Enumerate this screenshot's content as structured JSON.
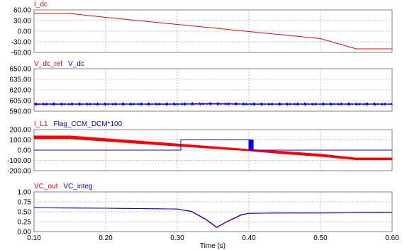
{
  "chart_data": [
    {
      "type": "line",
      "title": "",
      "legend": [
        {
          "text": "I_dc",
          "color": "#ff0000"
        }
      ],
      "xlim": [
        0.1,
        0.6
      ],
      "ylim": [
        -60,
        60
      ],
      "yticks": [
        60,
        30,
        0,
        -30,
        -60
      ],
      "ytick_labels": [
        "60.00",
        "30.00",
        "0.00",
        "-30.00",
        "-60.00"
      ],
      "series": [
        {
          "name": "I_dc",
          "color": "#ff0000",
          "style": "line",
          "x": [
            0.1,
            0.15,
            0.2,
            0.25,
            0.3,
            0.35,
            0.4,
            0.45,
            0.5,
            0.55,
            0.6
          ],
          "y": [
            50,
            50,
            39,
            29,
            19,
            9,
            -1,
            -11,
            -21,
            -50,
            -50
          ]
        }
      ]
    },
    {
      "type": "line",
      "title": "",
      "legend": [
        {
          "text": "V_dc_ref",
          "color": "#ff0000"
        },
        {
          "text": "V_dc",
          "color": "#0000ff"
        }
      ],
      "xlim": [
        0.1,
        0.6
      ],
      "ylim": [
        590,
        650
      ],
      "yticks": [
        650,
        635,
        620,
        605,
        590
      ],
      "ytick_labels": [
        "650.00",
        "635.00",
        "620.00",
        "605.00",
        "590.00"
      ],
      "series": [
        {
          "name": "V_dc_ref",
          "color": "#ff0000",
          "style": "line",
          "x": [
            0.1,
            0.6
          ],
          "y": [
            600,
            600
          ]
        },
        {
          "name": "V_dc",
          "color": "#0000ff",
          "style": "noisy",
          "x": [
            0.1,
            0.3,
            0.35,
            0.4,
            0.6
          ],
          "y": [
            600,
            600,
            600.5,
            600,
            600
          ],
          "ripple": 1.2
        }
      ]
    },
    {
      "type": "line",
      "title": "",
      "legend": [
        {
          "text": "I_L1",
          "color": "#ff0000"
        },
        {
          "text": "Flag_CCM_DCM*100",
          "color": "#0000ff"
        }
      ],
      "xlim": [
        0.1,
        0.6
      ],
      "ylim": [
        -200,
        200
      ],
      "yticks": [
        200,
        100,
        0,
        -100,
        -200
      ],
      "ytick_labels": [
        "200.00",
        "100.00",
        "0.00",
        "-100.00",
        "-200.00"
      ],
      "series": [
        {
          "name": "I_L1",
          "color": "#ff0000",
          "style": "band",
          "x": [
            0.1,
            0.15,
            0.2,
            0.25,
            0.3,
            0.35,
            0.4,
            0.45,
            0.5,
            0.55,
            0.6
          ],
          "y": [
            125,
            125,
            100,
            75,
            50,
            25,
            0,
            -25,
            -50,
            -85,
            -85
          ],
          "upper": [
            140,
            140,
            114,
            88,
            62,
            35,
            8,
            -12,
            -38,
            -75,
            -75
          ],
          "lower": [
            110,
            110,
            86,
            62,
            38,
            15,
            -8,
            -38,
            -62,
            -95,
            -95
          ]
        },
        {
          "name": "Flag_CCM_DCM*100",
          "color": "#0000ff",
          "style": "step",
          "x": [
            0.1,
            0.305,
            0.305,
            0.4,
            0.4,
            0.401,
            0.401,
            0.402,
            0.402,
            0.403,
            0.403,
            0.404,
            0.404,
            0.405,
            0.405,
            0.406,
            0.406,
            0.6
          ],
          "y": [
            0,
            0,
            100,
            100,
            0,
            0,
            100,
            100,
            0,
            0,
            100,
            100,
            0,
            0,
            100,
            100,
            0,
            0
          ]
        }
      ]
    },
    {
      "type": "line",
      "title": "",
      "legend": [
        {
          "text": "VC_out",
          "color": "#ff0000"
        },
        {
          "text": "VC_integ",
          "color": "#0000ff"
        }
      ],
      "xlim": [
        0.1,
        0.6
      ],
      "ylim": [
        0,
        1
      ],
      "yticks": [
        1,
        0.75,
        0.5,
        0.25,
        0
      ],
      "ytick_labels": [
        "1.00",
        "0.75",
        "0.50",
        "0.25",
        "0.00"
      ],
      "xticks": [
        0.1,
        0.2,
        0.3,
        0.4,
        0.5,
        0.6
      ],
      "xtick_labels": [
        "0.10",
        "0.20",
        "0.30",
        "0.40",
        "0.50",
        "0.60"
      ],
      "xlabel": "Time (s)",
      "series": [
        {
          "name": "VC_out",
          "color": "#ff0000",
          "style": "line",
          "x": [
            0.1,
            0.2,
            0.3,
            0.32,
            0.34,
            0.355,
            0.37,
            0.39,
            0.4,
            0.45,
            0.5,
            0.6
          ],
          "y": [
            0.6,
            0.59,
            0.57,
            0.5,
            0.3,
            0.1,
            0.25,
            0.42,
            0.46,
            0.47,
            0.47,
            0.48
          ]
        },
        {
          "name": "VC_integ",
          "color": "#0000ff",
          "style": "line",
          "x": [
            0.1,
            0.2,
            0.3,
            0.32,
            0.34,
            0.355,
            0.37,
            0.39,
            0.4,
            0.45,
            0.5,
            0.6
          ],
          "y": [
            0.6,
            0.59,
            0.57,
            0.51,
            0.31,
            0.11,
            0.26,
            0.43,
            0.46,
            0.47,
            0.47,
            0.48
          ]
        }
      ]
    }
  ]
}
